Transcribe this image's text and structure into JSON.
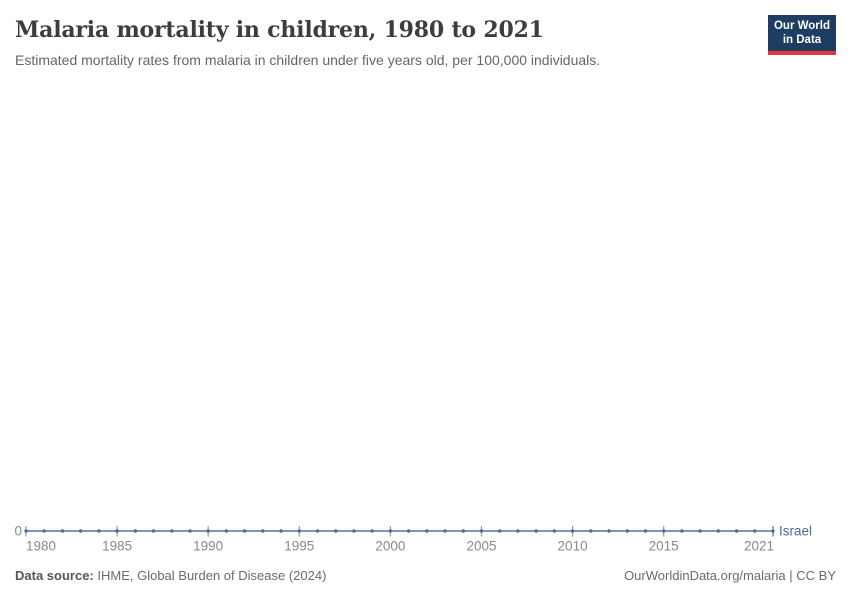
{
  "header": {
    "title": "Malaria mortality in children, 1980 to 2021",
    "subtitle": "Estimated mortality rates from malaria in children under five years old, per 100,000 individuals.",
    "logo": {
      "line1": "Our World",
      "line2": "in Data",
      "bg_color": "#1d3d63",
      "bar_color": "#e0383e"
    }
  },
  "chart_data": {
    "type": "line",
    "title": "Malaria mortality in children, 1980 to 2021",
    "xlabel": "",
    "ylabel": "",
    "x": [
      1980,
      1981,
      1982,
      1983,
      1984,
      1985,
      1986,
      1987,
      1988,
      1989,
      1990,
      1991,
      1992,
      1993,
      1994,
      1995,
      1996,
      1997,
      1998,
      1999,
      2000,
      2001,
      2002,
      2003,
      2004,
      2005,
      2006,
      2007,
      2008,
      2009,
      2010,
      2011,
      2012,
      2013,
      2014,
      2015,
      2016,
      2017,
      2018,
      2019,
      2020,
      2021
    ],
    "series": [
      {
        "name": "Israel",
        "color": "#4C6A9C",
        "values": [
          0,
          0,
          0,
          0,
          0,
          0,
          0,
          0,
          0,
          0,
          0,
          0,
          0,
          0,
          0,
          0,
          0,
          0,
          0,
          0,
          0,
          0,
          0,
          0,
          0,
          0,
          0,
          0,
          0,
          0,
          0,
          0,
          0,
          0,
          0,
          0,
          0,
          0,
          0,
          0,
          0,
          0
        ]
      }
    ],
    "x_ticks": [
      1980,
      1985,
      1990,
      1995,
      2000,
      2005,
      2010,
      2015,
      2021
    ],
    "y_ticks": [
      0
    ],
    "y_tick_labels": [
      "0"
    ],
    "ylim": [
      0,
      1
    ],
    "grid": false,
    "legend_position": "end-of-line-label",
    "marker_style": "dots-every-year"
  },
  "axis": {
    "zero_label": "0",
    "label_color": "#8a8a8a",
    "tick_color": "#8da2c0"
  },
  "footer": {
    "source_label": "Data source:",
    "source_text": " IHME, Global Burden of Disease (2024)",
    "right_text": "OurWorldinData.org/malaria | CC BY"
  }
}
